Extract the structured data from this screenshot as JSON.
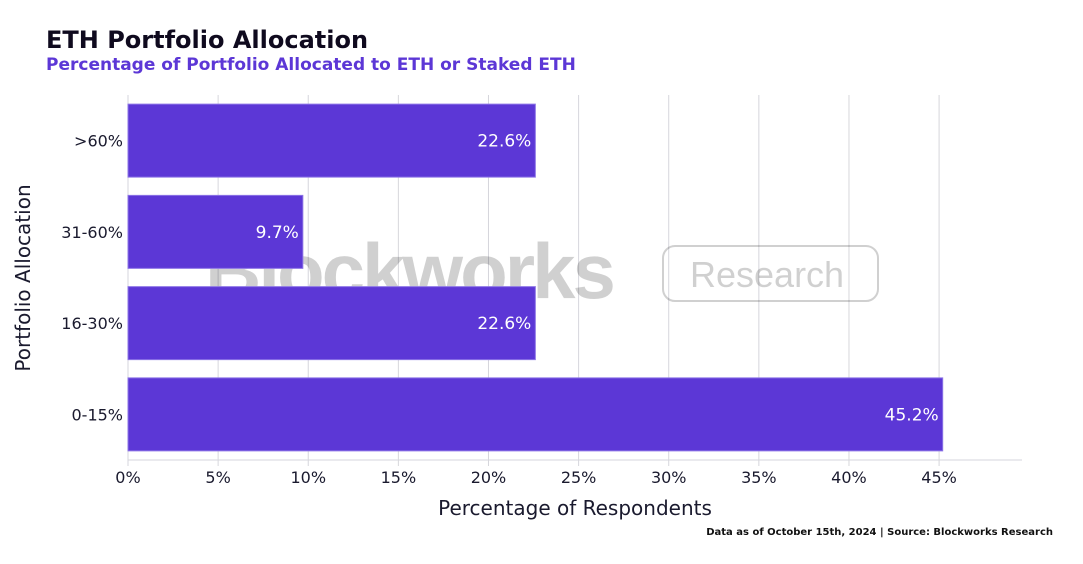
{
  "chart_data": {
    "type": "bar",
    "orientation": "horizontal",
    "title": "ETH Portfolio Allocation",
    "subtitle": "Percentage of Portfolio Allocated to ETH or Staked ETH",
    "xlabel": "Percentage of Respondents",
    "ylabel": "Portfolio Allocation",
    "categories": [
      ">60%",
      "31-60%",
      "16-30%",
      "0-15%"
    ],
    "values": [
      22.6,
      9.7,
      22.6,
      45.2
    ],
    "data_labels": [
      "22.6%",
      "9.7%",
      "22.6%",
      "45.2%"
    ],
    "xlim": [
      0,
      49.6
    ],
    "xticks": [
      0,
      5,
      10,
      15,
      20,
      25,
      30,
      35,
      40,
      45
    ],
    "xtick_labels": [
      "0%",
      "5%",
      "10%",
      "15%",
      "20%",
      "25%",
      "30%",
      "35%",
      "40%",
      "45%"
    ],
    "grid": true,
    "bar_color": "#5c37d6",
    "footer": "Data as of October 15th, 2024 | Source: Blockworks Research",
    "watermark": "Blockworks Research"
  }
}
